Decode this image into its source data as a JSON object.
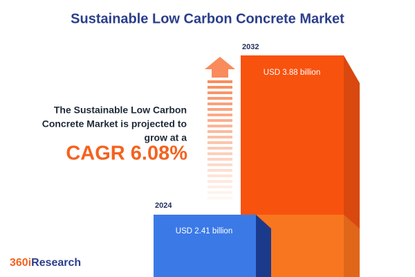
{
  "title": "Sustainable Low Carbon Concrete Market",
  "description": [
    "The Sustainable Low Carbon",
    "Concrete Market is projected to",
    "grow at a"
  ],
  "cagr": "CAGR 6.08%",
  "bars": [
    {
      "year": "2024",
      "label": "USD 2.41 billion"
    },
    {
      "year": "2032",
      "label": "USD 3.88 billion"
    }
  ],
  "brand": {
    "accent": "360i",
    "name": "Research"
  }
}
